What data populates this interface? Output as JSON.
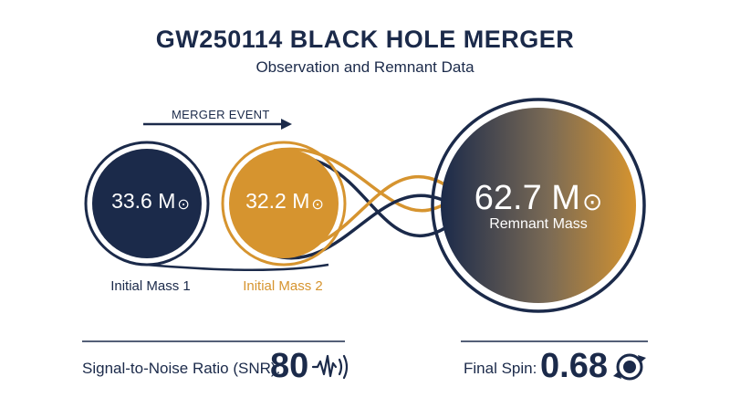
{
  "header": {
    "title": "GW250114 BLACK HOLE MERGER",
    "subtitle": "Observation and Remnant Data"
  },
  "event": {
    "label": "MERGER EVENT",
    "arrow_icon": "arrow-right-icon"
  },
  "masses": {
    "mass1": {
      "value": "33.6 M",
      "unit_symbol": "⊙",
      "label": "Initial Mass 1"
    },
    "mass2": {
      "value": "32.2 M",
      "unit_symbol": "⊙",
      "label": "Initial Mass 2"
    },
    "remnant": {
      "value": "62.7 M",
      "unit_symbol": "⊙",
      "label": "Remnant Mass"
    }
  },
  "stats": {
    "snr": {
      "label": "Signal-to-Noise Ratio (SNR):",
      "value": "80",
      "icon": "waveform-icon"
    },
    "spin": {
      "label": "Final Spin:",
      "value": "0.68",
      "icon": "spin-icon"
    }
  },
  "colors": {
    "navy": "#1b2a4a",
    "gold": "#d6942f"
  }
}
